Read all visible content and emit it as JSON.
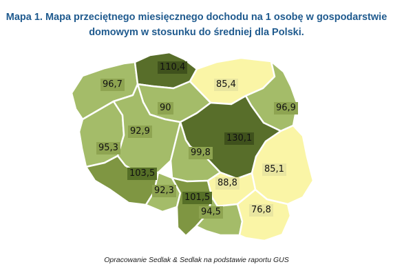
{
  "title_line1": "Mapa 1. Mapa przeciętnego miesięcznego dochodu na 1 osobę w gospodarstwie",
  "title_line2": "domowym w stosunku do średniej dla Polski.",
  "source_caption": "Opracowanie Sedlak & Sedlak na podstawie raportu GUS",
  "legend_colors": {
    "very_high": "#586e2a",
    "high": "#7f9642",
    "medium": "#a4bc69",
    "low": "#c4d598",
    "lowest": "#faf5a6"
  },
  "regions": [
    {
      "id": "pomorskie",
      "value": "110,4",
      "tier": "very_high"
    },
    {
      "id": "warminsko-mazurskie",
      "value": "85,4",
      "tier": "lowest"
    },
    {
      "id": "zachodniopomorskie",
      "value": "96,7",
      "tier": "medium"
    },
    {
      "id": "kujawsko-pomorskie",
      "value": "90",
      "tier": "medium"
    },
    {
      "id": "podlaskie",
      "value": "96,9",
      "tier": "medium"
    },
    {
      "id": "wielkopolskie",
      "value": "92,9",
      "tier": "medium"
    },
    {
      "id": "lubuskie",
      "value": "95,3",
      "tier": "medium"
    },
    {
      "id": "mazowieckie",
      "value": "130,1",
      "tier": "very_high"
    },
    {
      "id": "lodzkie",
      "value": "99,8",
      "tier": "medium"
    },
    {
      "id": "lubelskie",
      "value": "85,1",
      "tier": "lowest"
    },
    {
      "id": "dolnoslaskie",
      "value": "103,5",
      "tier": "high"
    },
    {
      "id": "opolskie",
      "value": "92,3",
      "tier": "medium"
    },
    {
      "id": "swietokrzyskie",
      "value": "88,8",
      "tier": "lowest"
    },
    {
      "id": "slaskie",
      "value": "101,5",
      "tier": "high"
    },
    {
      "id": "malopolskie",
      "value": "94,5",
      "tier": "medium"
    },
    {
      "id": "podkarpackie",
      "value": "76,8",
      "tier": "lowest"
    }
  ]
}
